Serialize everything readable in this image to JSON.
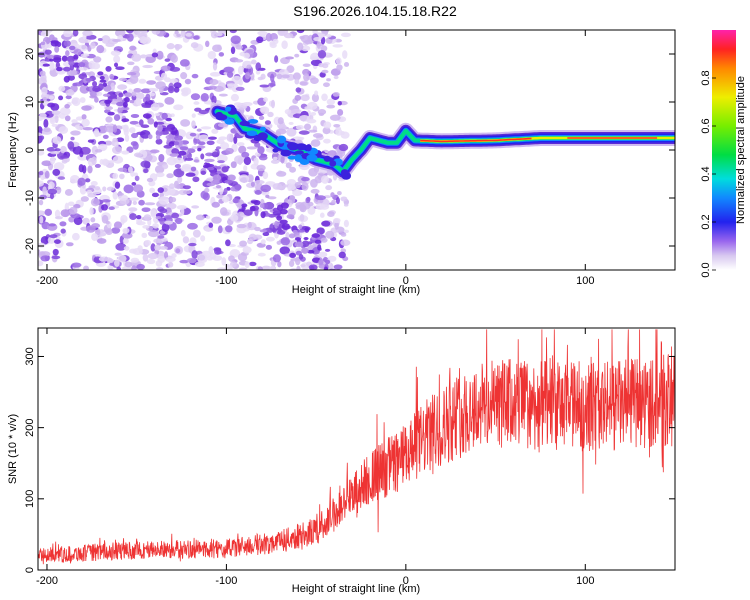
{
  "title": "S196.2026.104.15.18.R22",
  "chart_data": [
    {
      "type": "heatmap",
      "name": "spectrogram",
      "xlabel": "Height of straight line (km)",
      "ylabel": "Frequency (Hz)",
      "xlim": [
        -205,
        150
      ],
      "ylim": [
        -25,
        25
      ],
      "xticks": [
        -200,
        -100,
        0,
        100
      ],
      "yticks": [
        -20,
        -10,
        0,
        10,
        20
      ],
      "colorbar": {
        "label": "Normalized spectral amplitude",
        "range": [
          0,
          1
        ],
        "ticks": [
          0.0,
          0.2,
          0.4,
          0.6,
          0.8
        ]
      },
      "ridge": {
        "description": "dominant frequency track",
        "points": [
          {
            "x": -105,
            "y": 8
          },
          {
            "x": -95,
            "y": 7
          },
          {
            "x": -90,
            "y": 4.5
          },
          {
            "x": -80,
            "y": 3.5
          },
          {
            "x": -70,
            "y": 1
          },
          {
            "x": -60,
            "y": 0
          },
          {
            "x": -50,
            "y": -2
          },
          {
            "x": -40,
            "y": -3
          },
          {
            "x": -35,
            "y": -4.5
          },
          {
            "x": -30,
            "y": -2
          },
          {
            "x": -25,
            "y": 0
          },
          {
            "x": -20,
            "y": 2.5
          },
          {
            "x": -15,
            "y": 2
          },
          {
            "x": -10,
            "y": 1.5
          },
          {
            "x": -5,
            "y": 1.5
          },
          {
            "x": 0,
            "y": 4
          },
          {
            "x": 5,
            "y": 2
          },
          {
            "x": 20,
            "y": 1.8
          },
          {
            "x": 50,
            "y": 2
          },
          {
            "x": 75,
            "y": 2.5
          },
          {
            "x": 100,
            "y": 2.5
          },
          {
            "x": 150,
            "y": 2.5
          }
        ]
      }
    },
    {
      "type": "line",
      "name": "snr",
      "xlabel": "Height of straight line (km)",
      "ylabel": "SNR (10 * v/v)",
      "xlim": [
        -205,
        150
      ],
      "ylim": [
        0,
        340
      ],
      "xticks": [
        -200,
        -100,
        0,
        100
      ],
      "yticks": [
        0,
        100,
        200,
        300
      ],
      "color": "#ee3333",
      "envelope": [
        {
          "x": -205,
          "y": 20
        },
        {
          "x": -150,
          "y": 28
        },
        {
          "x": -100,
          "y": 30
        },
        {
          "x": -70,
          "y": 40
        },
        {
          "x": -50,
          "y": 55
        },
        {
          "x": -35,
          "y": 90
        },
        {
          "x": -20,
          "y": 130
        },
        {
          "x": 0,
          "y": 160
        },
        {
          "x": 10,
          "y": 185
        },
        {
          "x": 25,
          "y": 210
        },
        {
          "x": 40,
          "y": 230
        },
        {
          "x": 60,
          "y": 235
        },
        {
          "x": 80,
          "y": 230
        },
        {
          "x": 100,
          "y": 230
        },
        {
          "x": 120,
          "y": 232
        },
        {
          "x": 150,
          "y": 240
        }
      ]
    }
  ]
}
